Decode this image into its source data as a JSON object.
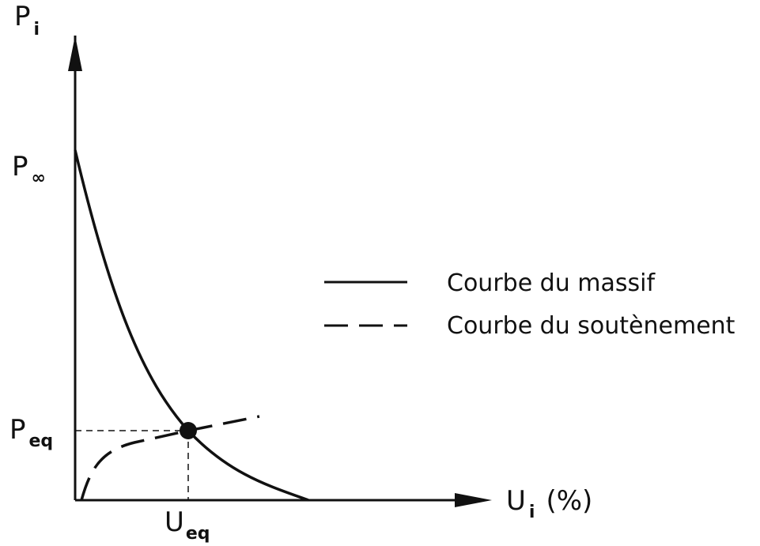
{
  "axes": {
    "y_label": {
      "base": "P",
      "sub": "i"
    },
    "x_label": {
      "base": "U",
      "sub": "i",
      "suffix": "(%)"
    }
  },
  "markers": {
    "p_inf": {
      "base": "P",
      "sub": "∞"
    },
    "p_eq": {
      "base": "P",
      "sub": "eq"
    },
    "u_eq": {
      "base": "U",
      "sub": "eq"
    }
  },
  "legend": [
    {
      "label": "Courbe du massif",
      "style": "solid"
    },
    {
      "label": "Courbe du soutènement",
      "style": "dashed"
    }
  ]
}
